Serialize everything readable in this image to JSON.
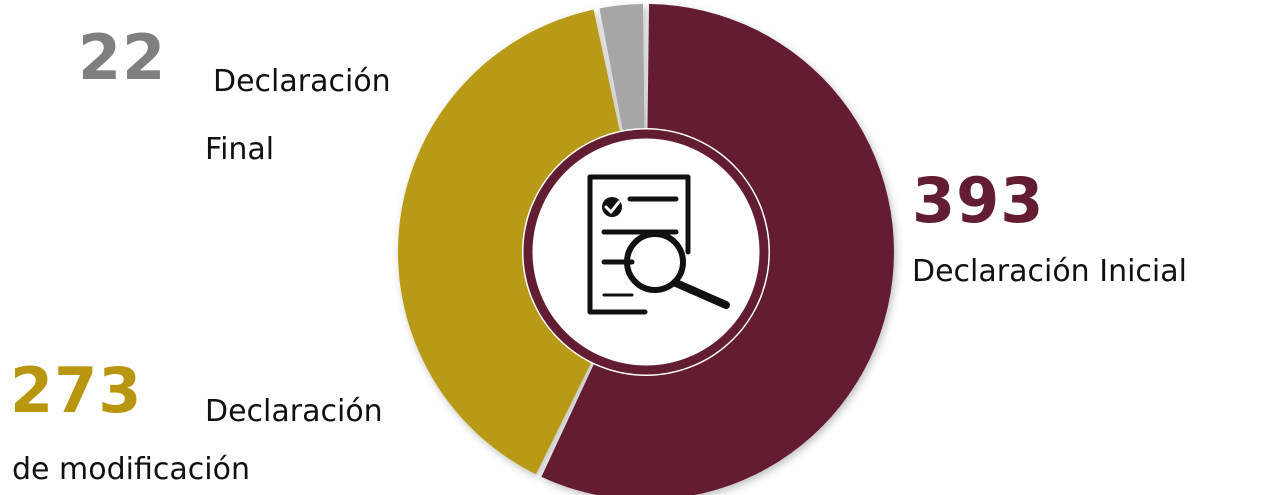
{
  "chart_data": {
    "type": "pie",
    "variant": "donut",
    "slices": [
      {
        "key": "inicial",
        "value": 393,
        "value_label": "393",
        "label": "Declaración Inicial",
        "color": "#631d33"
      },
      {
        "key": "modificacion",
        "value": 273,
        "value_label": "273",
        "label_line1": "Declaración",
        "label_line2": "de modificación",
        "color": "#b89a17"
      },
      {
        "key": "final",
        "value": 22,
        "value_label": "22",
        "label_line1": "Declaración",
        "label_line2": "Final",
        "color": "#a6a6a6"
      }
    ],
    "center_icon": "document-search-icon",
    "center_ring_color": "#631d33"
  },
  "colors": {
    "final_number": "#7f7f7f",
    "modificacion_number": "#b8960f",
    "inicial_number": "#631d33"
  }
}
